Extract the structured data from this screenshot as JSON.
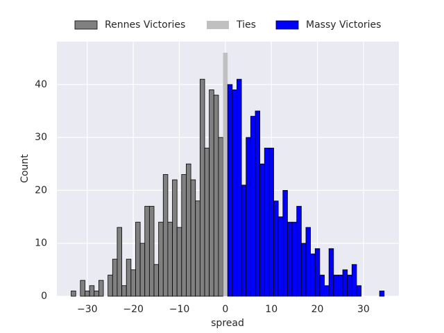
{
  "chart_data": {
    "type": "histogram",
    "xlabel": "spread",
    "ylabel": "Count",
    "xlim": [
      -36.6,
      37.7
    ],
    "ylim": [
      0,
      48.1
    ],
    "xticks": [
      {
        "value": -30,
        "label": "−30"
      },
      {
        "value": -20,
        "label": "−20"
      },
      {
        "value": -10,
        "label": "−10"
      },
      0,
      10,
      20,
      30
    ],
    "yticks": [
      0,
      10,
      20,
      30,
      40
    ],
    "grid": true,
    "legend": "top",
    "series": [
      {
        "name": "Rennes Victories",
        "color": "#808080",
        "edgecolor": "#000000",
        "bins": [
          -33.5,
          -32.5,
          -31.5,
          -30.5,
          -29.5,
          -28.5,
          -27.5,
          -26.5,
          -25.5,
          -24.5,
          -23.5,
          -22.5,
          -21.5,
          -20.5,
          -19.5,
          -18.5,
          -17.5,
          -16.5,
          -15.5,
          -14.5,
          -13.5,
          -12.5,
          -11.5,
          -10.5,
          -9.5,
          -8.5,
          -7.5,
          -6.5,
          -5.5,
          -4.5,
          -3.5,
          -2.5,
          -1.5,
          -0.5
        ],
        "values": [
          1,
          0,
          3,
          1,
          2,
          1,
          3,
          0,
          4,
          7,
          13,
          2,
          7,
          5,
          14,
          10,
          17,
          17,
          6,
          14,
          23,
          14,
          22,
          13,
          23,
          25,
          22,
          18,
          41,
          28,
          39,
          38,
          30
        ]
      },
      {
        "name": "Ties",
        "color": "#c0c0c0",
        "bins": [
          -0.5,
          0.5
        ],
        "values": [
          46
        ]
      },
      {
        "name": "Massy Victories",
        "color": "#0000ff",
        "edgecolor": "#000000",
        "bins": [
          0.5,
          1.5,
          2.5,
          3.5,
          4.5,
          5.5,
          6.5,
          7.5,
          8.5,
          9.5,
          10.5,
          11.5,
          12.5,
          13.5,
          14.5,
          15.5,
          16.5,
          17.5,
          18.5,
          19.5,
          20.5,
          21.5,
          22.5,
          23.5,
          24.5,
          25.5,
          26.5,
          27.5,
          28.5,
          29.5,
          30.5,
          31.5,
          32.5,
          33.5,
          34.5
        ],
        "values": [
          40,
          39,
          41,
          21,
          30,
          34,
          35,
          25,
          28,
          28,
          18,
          15,
          20,
          14,
          14,
          17,
          10,
          13,
          8,
          9,
          4,
          2,
          9,
          4,
          4,
          5,
          4,
          6,
          2,
          0,
          0,
          0,
          0,
          1
        ]
      }
    ]
  }
}
